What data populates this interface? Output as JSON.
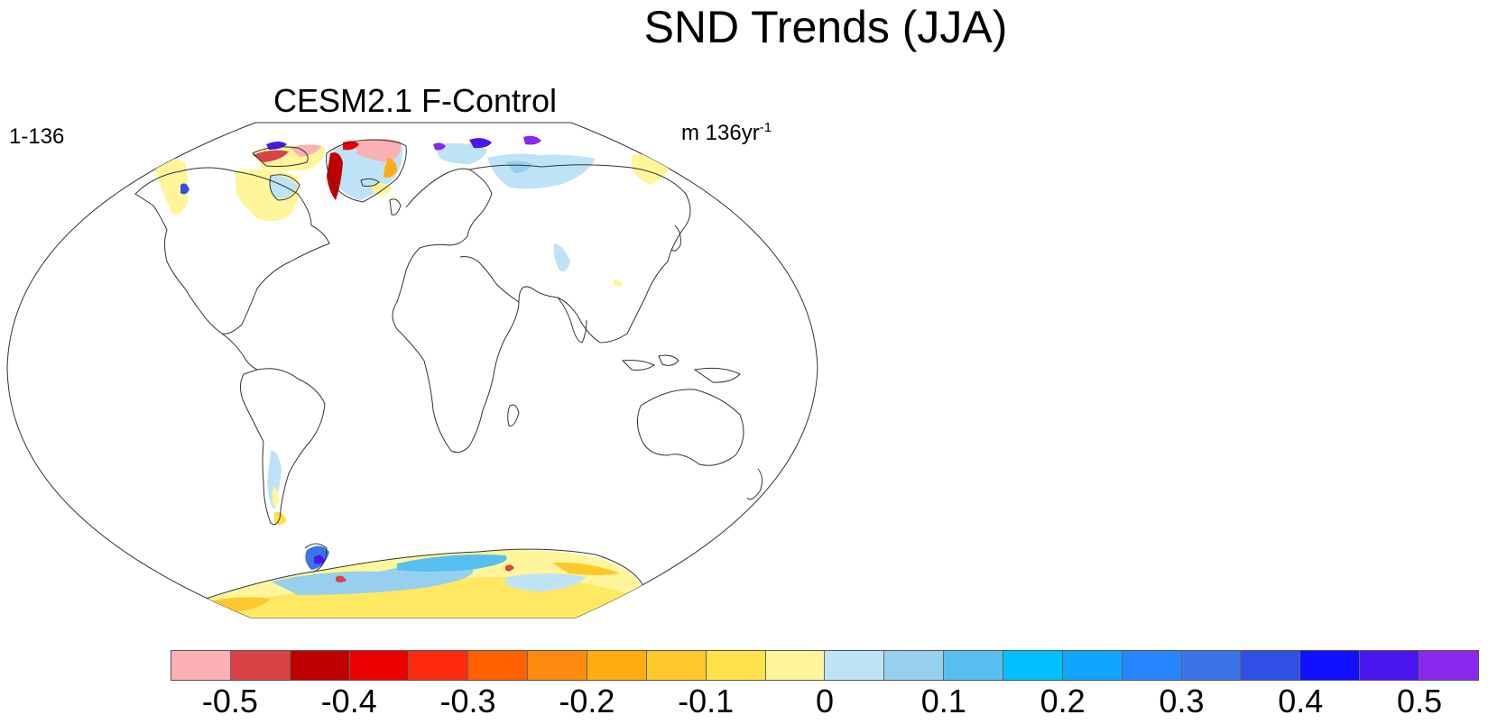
{
  "title": "SND Trends (JJA)",
  "panel": {
    "title": "CESM2.1 F-Control",
    "left_label": "1-136",
    "right_label_base": "m 136yr",
    "right_label_exp": "-1"
  },
  "colorbar": {
    "colors": [
      "#fbb0b4",
      "#da4245",
      "#c00000",
      "#ea0000",
      "#ff2a10",
      "#ff6000",
      "#ff8a10",
      "#ffac10",
      "#ffc82a",
      "#ffe24a",
      "#fff59a",
      "#bfe3f6",
      "#96d0ee",
      "#57bfef",
      "#00c0ff",
      "#10a6ff",
      "#2586ff",
      "#3a74e8",
      "#2f4fe6",
      "#1010ff",
      "#4a16f0",
      "#8a28f0"
    ],
    "tick_labels": [
      "-0.5",
      "-0.4",
      "-0.3",
      "-0.2",
      "-0.1",
      "0",
      "0.1",
      "0.2",
      "0.3",
      "0.4",
      "0.5"
    ]
  }
}
